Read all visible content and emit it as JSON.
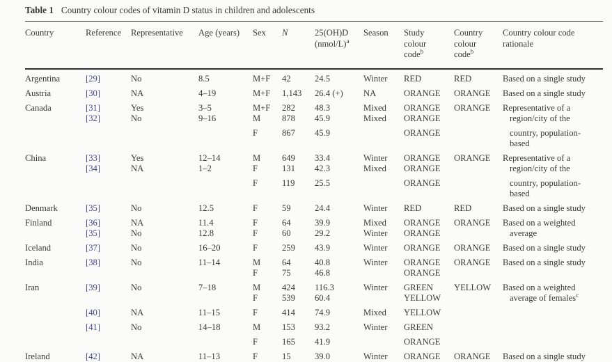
{
  "caption": {
    "label": "Table 1",
    "text": "Country colour codes of vitamin D status in children and adolescents"
  },
  "colors": {
    "reference_link": "#45458d",
    "text": "#383838",
    "background": "#fbfbfa"
  },
  "table": {
    "columns": [
      {
        "key": "country",
        "label": "Country"
      },
      {
        "key": "ref",
        "label": "Reference"
      },
      {
        "key": "repr",
        "label": "Representative"
      },
      {
        "key": "age",
        "label": "Age (years)"
      },
      {
        "key": "sex",
        "label": "Sex"
      },
      {
        "key": "n",
        "label": "N",
        "italic": true
      },
      {
        "key": "ohd",
        "label": "25(OH)D\n(nmol/L)^a"
      },
      {
        "key": "season",
        "label": "Season"
      },
      {
        "key": "study",
        "label": "Study\ncolour\ncode^b"
      },
      {
        "key": "ccode",
        "label": "Country\ncolour\ncode^b"
      },
      {
        "key": "rationale",
        "label": "Country colour code\nrationale"
      }
    ],
    "rows": [
      {
        "country": "Argentina",
        "ref": "[29]",
        "repr": "No",
        "age": "8.5",
        "sex": "M+F",
        "n": "42",
        "ohd": "24.5",
        "season": "Winter",
        "study": "RED",
        "ccode": "RED",
        "rationale": "Based on a single study"
      },
      {
        "country": "Austria",
        "ref": "[30]",
        "repr": "NA",
        "age": "4–19",
        "sex": "M+F",
        "n": "1,143",
        "ohd": "26.4 (+)",
        "season": "NA",
        "study": "ORANGE",
        "ccode": "ORANGE",
        "rationale": "Based on a single study"
      },
      {
        "country": "Canada",
        "ref": "[31]",
        "repr": "Yes",
        "age": "3–5",
        "sex": "M+F",
        "n": "282",
        "ohd": "48.3",
        "season": "Mixed",
        "study": "ORANGE",
        "ccode": "ORANGE",
        "rationale": "Representative of a"
      },
      {
        "ref": "[32]",
        "repr": "No",
        "age": "9–16",
        "sex": "M",
        "n": "878",
        "ohd": "45.9",
        "season": "Mixed",
        "study": "ORANGE",
        "rationale": "region/city of the",
        "tight": true,
        "rind": true
      },
      {
        "sex": "F",
        "n": "867",
        "ohd": "45.9",
        "study": "ORANGE",
        "rationale": "country, population-",
        "rind": true
      },
      {
        "rationale": "based",
        "tight": true,
        "rind": true
      },
      {
        "country": "China",
        "ref": "[33]",
        "repr": "Yes",
        "age": "12–14",
        "sex": "M",
        "n": "649",
        "ohd": "33.4",
        "season": "Winter",
        "study": "ORANGE",
        "ccode": "ORANGE",
        "rationale": "Representative of a"
      },
      {
        "ref": "[34]",
        "repr": "NA",
        "age": "1–2",
        "sex": "F",
        "n": "131",
        "ohd": "42.3",
        "season": "Mixed",
        "study": "ORANGE",
        "rationale": "region/city of the",
        "tight": true,
        "rind": true
      },
      {
        "sex": "F",
        "n": "119",
        "ohd": "25.5",
        "study": "ORANGE",
        "rationale": "country, population-",
        "rind": true
      },
      {
        "rationale": "based",
        "tight": true,
        "rind": true
      },
      {
        "country": "Denmark",
        "ref": "[35]",
        "repr": "No",
        "age": "12.5",
        "sex": "F",
        "n": "59",
        "ohd": "24.4",
        "season": "Winter",
        "study": "RED",
        "ccode": "RED",
        "rationale": "Based on a single study"
      },
      {
        "country": "Finland",
        "ref": "[36]",
        "repr": "NA",
        "age": "11.4",
        "sex": "F",
        "n": "64",
        "ohd": "39.9",
        "season": "Mixed",
        "study": "ORANGE",
        "ccode": "ORANGE",
        "rationale": "Based on a weighted"
      },
      {
        "ref": "[35]",
        "repr": "No",
        "age": "12.8",
        "sex": "F",
        "n": "60",
        "ohd": "29.2",
        "season": "Winter",
        "study": "ORANGE",
        "rationale": "average",
        "tight": true,
        "rind": true
      },
      {
        "country": "Iceland",
        "ref": "[37]",
        "repr": "No",
        "age": "16–20",
        "sex": "F",
        "n": "259",
        "ohd": "43.9",
        "season": "Winter",
        "study": "ORANGE",
        "ccode": "ORANGE",
        "rationale": "Based on a single study"
      },
      {
        "country": "India",
        "ref": "[38]",
        "repr": "No",
        "age": "11–14",
        "sex": "M",
        "n": "64",
        "ohd": "40.8",
        "season": "Winter",
        "study": "ORANGE",
        "ccode": "ORANGE",
        "rationale": "Based on a single study"
      },
      {
        "sex": "F",
        "n": "75",
        "ohd": "46.8",
        "study": "ORANGE",
        "tight": true
      },
      {
        "country": "Iran",
        "ref": "[39]",
        "repr": "No",
        "age": "7–18",
        "sex": "M",
        "n": "424",
        "ohd": "116.3",
        "season": "Winter",
        "study": "GREEN",
        "ccode": "YELLOW",
        "rationale": "Based on a weighted"
      },
      {
        "sex": "F",
        "n": "539",
        "ohd": "60.4",
        "study": "YELLOW",
        "rationale": "average of females^c",
        "tight": true,
        "rind": true
      },
      {
        "ref": "[40]",
        "repr": "NA",
        "age": "11–15",
        "sex": "F",
        "n": "414",
        "ohd": "74.9",
        "season": "Mixed",
        "study": "YELLOW"
      },
      {
        "ref": "[41]",
        "repr": "No",
        "age": "14–18",
        "sex": "M",
        "n": "153",
        "ohd": "93.2",
        "season": "Winter",
        "study": "GREEN"
      },
      {
        "sex": "F",
        "n": "165",
        "ohd": "41.9",
        "study": "ORANGE"
      },
      {
        "country": "Ireland",
        "ref": "[42]",
        "repr": "NA",
        "age": "11–13",
        "sex": "F",
        "n": "15",
        "ohd": "39.0",
        "season": "Winter",
        "study": "ORANGE",
        "ccode": "ORANGE",
        "rationale": "Based on a single study"
      }
    ]
  }
}
